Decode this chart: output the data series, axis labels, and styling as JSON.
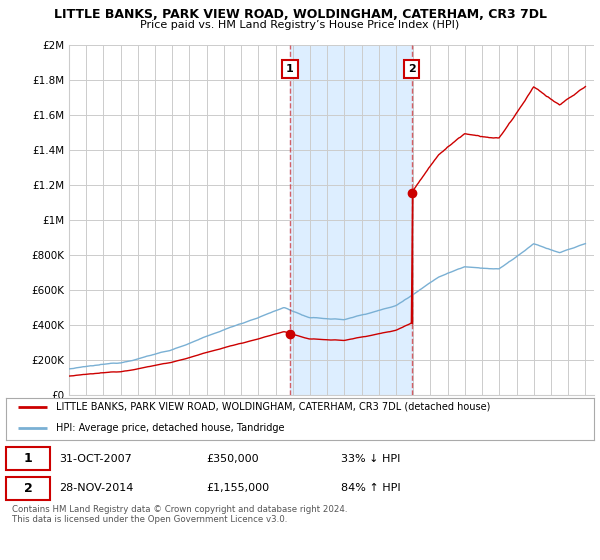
{
  "title": "LITTLE BANKS, PARK VIEW ROAD, WOLDINGHAM, CATERHAM, CR3 7DL",
  "subtitle": "Price paid vs. HM Land Registry’s House Price Index (HPI)",
  "title_fontsize": 9,
  "subtitle_fontsize": 8,
  "ylim": [
    0,
    2000000
  ],
  "yticks": [
    0,
    200000,
    400000,
    600000,
    800000,
    1000000,
    1200000,
    1400000,
    1600000,
    1800000,
    2000000
  ],
  "ytick_labels": [
    "£0",
    "£200K",
    "£400K",
    "£600K",
    "£800K",
    "£1M",
    "£1.2M",
    "£1.4M",
    "£1.6M",
    "£1.8M",
    "£2M"
  ],
  "legend_entry1": "LITTLE BANKS, PARK VIEW ROAD, WOLDINGHAM, CATERHAM, CR3 7DL (detached house)",
  "legend_entry2": "HPI: Average price, detached house, Tandridge",
  "marker1_label": "1",
  "marker1_date": "31-OCT-2007",
  "marker1_price": "£350,000",
  "marker1_pct": "33% ↓ HPI",
  "marker1_x": 2007.83,
  "marker1_y": 350000,
  "marker2_label": "2",
  "marker2_date": "28-NOV-2014",
  "marker2_price": "£1,155,000",
  "marker2_pct": "84% ↑ HPI",
  "marker2_x": 2014.91,
  "marker2_y": 1155000,
  "vline1_x": 2007.83,
  "vline2_x": 2014.91,
  "hpi_color": "#7ab0d4",
  "price_color": "#cc0000",
  "vline_color": "#cc0000",
  "highlight_color": "#ddeeff",
  "footer_text": "Contains HM Land Registry data © Crown copyright and database right 2024.\nThis data is licensed under the Open Government Licence v3.0.",
  "background_color": "#ffffff",
  "grid_color": "#cccccc",
  "xlim_start": 1995,
  "xlim_end": 2025.5
}
